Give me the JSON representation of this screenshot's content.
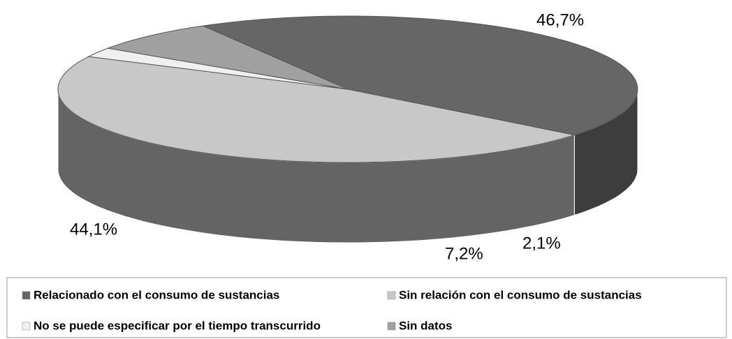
{
  "chart_data": {
    "type": "pie",
    "categories": [
      "Relacionado con el consumo de sustancias",
      "Sin relación con el consumo de sustancias",
      "No se puede especificar por el tiempo transcurrido",
      "Sin datos"
    ],
    "values": [
      44.1,
      46.7,
      2.1,
      7.2
    ],
    "value_labels": [
      "44,1%",
      "46,7%",
      "2,1%",
      "7,2%"
    ],
    "colors": [
      "#666666",
      "#c8c8c8",
      "#f0f0f0",
      "#a0a0a0"
    ],
    "legend": "bottom"
  }
}
